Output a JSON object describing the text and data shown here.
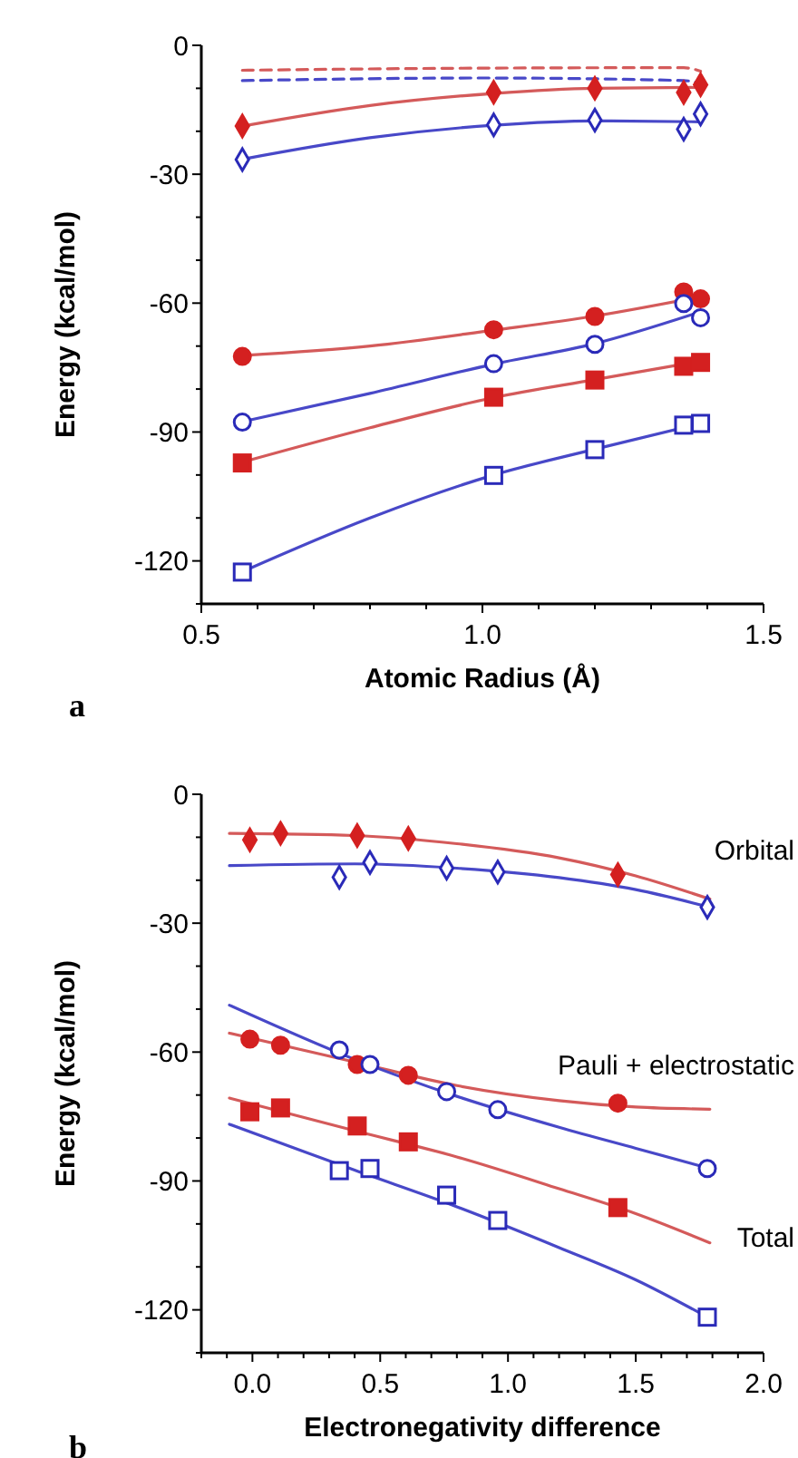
{
  "chart_data": [
    {
      "type": "scatter",
      "xlabel": "Atomic Radius (Å)",
      "ylabel": "Energy (kcal/mol)",
      "annotations": [
        "a"
      ],
      "xlim": [
        0.5,
        1.5
      ],
      "ylim": [
        -130,
        0
      ],
      "xticks": [
        {
          "value": 0.5,
          "label": "0.5"
        },
        {
          "value": 0.6,
          "label": null
        },
        {
          "value": 0.7,
          "label": null
        },
        {
          "value": 0.8,
          "label": null
        },
        {
          "value": 0.9,
          "label": null
        },
        {
          "value": 1.0,
          "label": "1.0"
        },
        {
          "value": 1.1,
          "label": null
        },
        {
          "value": 1.2,
          "label": null
        },
        {
          "value": 1.3,
          "label": null
        },
        {
          "value": 1.4,
          "label": null
        },
        {
          "value": 1.5,
          "label": "1.5"
        }
      ],
      "yticks": [
        {
          "value": -130,
          "label": null
        },
        -120,
        {
          "value": -110,
          "label": null
        },
        {
          "value": -100,
          "label": null
        },
        -90,
        {
          "value": -80,
          "label": null
        },
        {
          "value": -70,
          "label": null
        },
        -60,
        {
          "value": -50,
          "label": null
        },
        {
          "value": -40,
          "label": null
        },
        -30,
        {
          "value": -20,
          "label": null
        },
        {
          "value": -10,
          "label": null
        },
        0
      ],
      "grid": false,
      "series": [
        {
          "type": "line",
          "color": "#d45a5a",
          "line_style": "dashed",
          "marker": "none",
          "x": [
            0.573,
            1.0,
            1.358,
            1.388
          ],
          "values": [
            -5.8,
            -5.3,
            -5.2,
            -6
          ]
        },
        {
          "type": "line",
          "color": "#4848c8",
          "line_style": "dashed",
          "marker": "none",
          "x": [
            0.573,
            1.0,
            1.358,
            1.388
          ],
          "values": [
            -8.2,
            -7.6,
            -8.2,
            -8.8
          ]
        },
        {
          "type": "line",
          "color": "#d45a5a",
          "line_style": "solid",
          "marker": "none",
          "x": [
            0.573,
            0.8,
            1.02,
            1.2,
            1.388
          ],
          "values": [
            -18.8,
            -14,
            -11.2,
            -10,
            -9.8
          ]
        },
        {
          "type": "line",
          "color": "#4848c8",
          "line_style": "solid",
          "marker": "none",
          "x": [
            0.573,
            0.8,
            1.02,
            1.2,
            1.388
          ],
          "values": [
            -26.5,
            -21.5,
            -18.6,
            -17.6,
            -17.8
          ]
        },
        {
          "type": "line",
          "color": "#d45a5a",
          "line_style": "solid",
          "marker": "none",
          "x": [
            0.573,
            0.8,
            1.02,
            1.2,
            1.388
          ],
          "values": [
            -72.2,
            -70,
            -66.3,
            -63,
            -58.5
          ]
        },
        {
          "type": "line",
          "color": "#4848c8",
          "line_style": "solid",
          "marker": "none",
          "x": [
            0.573,
            0.8,
            1.02,
            1.2,
            1.388
          ],
          "values": [
            -87.6,
            -81,
            -74.2,
            -69.4,
            -62
          ]
        },
        {
          "type": "line",
          "color": "#d45a5a",
          "line_style": "solid",
          "marker": "none",
          "x": [
            0.573,
            0.8,
            1.02,
            1.2,
            1.388
          ],
          "values": [
            -97,
            -89,
            -82,
            -77.8,
            -73.5
          ]
        },
        {
          "type": "line",
          "color": "#4848c8",
          "line_style": "solid",
          "marker": "none",
          "x": [
            0.573,
            0.8,
            1.02,
            1.2,
            1.388
          ],
          "values": [
            -122.5,
            -110,
            -100,
            -94,
            -88
          ]
        },
        {
          "type": "scatter",
          "color": "#d42020",
          "marker": "diamond",
          "x": [
            0.573,
            1.02,
            1.2,
            1.358,
            1.388
          ],
          "values": [
            -18.8,
            -10.9,
            -10,
            -11,
            -9.2
          ]
        },
        {
          "type": "scatter",
          "color": "#2a2ab8",
          "marker": "diamond",
          "x": [
            0.573,
            1.02,
            1.2,
            1.358,
            1.388
          ],
          "values": [
            -26.6,
            -18.5,
            -17.4,
            -19.5,
            -16
          ]
        },
        {
          "type": "scatter",
          "color": "#d42020",
          "marker": "circle",
          "x": [
            0.573,
            1.02,
            1.2,
            1.358,
            1.388
          ],
          "values": [
            -72.4,
            -66.2,
            -63.1,
            -57.4,
            -59
          ]
        },
        {
          "type": "scatter",
          "color": "#2a2ab8",
          "marker": "circle",
          "x": [
            0.573,
            1.02,
            1.2,
            1.358,
            1.388
          ],
          "values": [
            -87.7,
            -74.1,
            -69.6,
            -60.1,
            -63.4
          ]
        },
        {
          "type": "scatter",
          "color": "#d42020",
          "marker": "square",
          "x": [
            0.573,
            1.02,
            1.2,
            1.358,
            1.388
          ],
          "values": [
            -97.2,
            -81.9,
            -77.9,
            -74.7,
            -73.8
          ]
        },
        {
          "type": "scatter",
          "color": "#2a2ab8",
          "marker": "square",
          "x": [
            0.573,
            1.02,
            1.2,
            1.358,
            1.388
          ],
          "values": [
            -122.6,
            -100.1,
            -94.1,
            -88.4,
            -88
          ]
        }
      ]
    },
    {
      "type": "scatter",
      "xlabel": "Electronegativity difference",
      "ylabel": "Energy (kcal/mol)",
      "xlim": [
        -0.2,
        2.0
      ],
      "ylim": [
        -130,
        0
      ],
      "annotations": [
        "b",
        "Orbital",
        "Pauli + electrostatic",
        "Total"
      ],
      "xticks": [
        {
          "value": -0.2,
          "label": null
        },
        {
          "value": -0.1,
          "label": null
        },
        {
          "value": 0,
          "label": "0.0"
        },
        {
          "value": 0.1,
          "label": null
        },
        {
          "value": 0.2,
          "label": null
        },
        {
          "value": 0.3,
          "label": null
        },
        {
          "value": 0.4,
          "label": null
        },
        {
          "value": 0.5,
          "label": "0.5"
        },
        {
          "value": 0.6,
          "label": null
        },
        {
          "value": 0.7,
          "label": null
        },
        {
          "value": 0.8,
          "label": null
        },
        {
          "value": 0.9,
          "label": null
        },
        {
          "value": 1.0,
          "label": "1.0"
        },
        {
          "value": 1.1,
          "label": null
        },
        {
          "value": 1.2,
          "label": null
        },
        {
          "value": 1.3,
          "label": null
        },
        {
          "value": 1.4,
          "label": null
        },
        {
          "value": 1.5,
          "label": "1.5"
        },
        {
          "value": 1.6,
          "label": null
        },
        {
          "value": 1.7,
          "label": null
        },
        {
          "value": 1.8,
          "label": null
        },
        {
          "value": 1.9,
          "label": null
        },
        {
          "value": 2.0,
          "label": "2.0"
        }
      ],
      "yticks": [
        {
          "value": -130,
          "label": null
        },
        -120,
        {
          "value": -110,
          "label": null
        },
        {
          "value": -100,
          "label": null
        },
        -90,
        {
          "value": -80,
          "label": null
        },
        {
          "value": -70,
          "label": null
        },
        -60,
        {
          "value": -50,
          "label": null
        },
        {
          "value": -40,
          "label": null
        },
        -30,
        {
          "value": -20,
          "label": null
        },
        {
          "value": -10,
          "label": null
        },
        0
      ],
      "grid": false,
      "series": [
        {
          "type": "line",
          "color": "#d45a5a",
          "line_style": "solid",
          "marker": "none",
          "x": [
            -0.09,
            0.4,
            0.8,
            1.2,
            1.5,
            1.79
          ],
          "values": [
            -9.1,
            -9.6,
            -11.5,
            -14.8,
            -19,
            -24.4
          ]
        },
        {
          "type": "line",
          "color": "#4848c8",
          "line_style": "solid",
          "marker": "none",
          "x": [
            -0.09,
            0.4,
            0.8,
            1.2,
            1.5,
            1.79
          ],
          "values": [
            -16.6,
            -16.2,
            -17.2,
            -19.4,
            -22.2,
            -26.3
          ]
        },
        {
          "type": "line",
          "color": "#d45a5a",
          "line_style": "solid",
          "marker": "none",
          "x": [
            -0.09,
            0.4,
            0.8,
            1.2,
            1.5,
            1.79
          ],
          "values": [
            -55.6,
            -62.3,
            -67.8,
            -71.3,
            -72.8,
            -73.3
          ]
        },
        {
          "type": "line",
          "color": "#4848c8",
          "line_style": "solid",
          "marker": "none",
          "x": [
            -0.09,
            0.4,
            0.8,
            1.2,
            1.5,
            1.79
          ],
          "values": [
            -49.1,
            -61.7,
            -70.3,
            -77.5,
            -82.4,
            -87.1
          ]
        },
        {
          "type": "line",
          "color": "#d45a5a",
          "line_style": "solid",
          "marker": "none",
          "x": [
            -0.09,
            0.4,
            0.8,
            1.2,
            1.5,
            1.79
          ],
          "values": [
            -70.7,
            -78.3,
            -84.4,
            -91.8,
            -97.6,
            -104.4
          ]
        },
        {
          "type": "line",
          "color": "#4848c8",
          "line_style": "solid",
          "marker": "none",
          "x": [
            -0.09,
            0.4,
            0.8,
            1.2,
            1.5,
            1.79
          ],
          "values": [
            -76.8,
            -87.5,
            -96,
            -105.5,
            -113,
            -122
          ]
        },
        {
          "type": "scatter",
          "color": "#d42020",
          "marker": "diamond",
          "x": [
            -0.01,
            0.11,
            0.41,
            0.61,
            1.43
          ],
          "values": [
            -10.6,
            -9.1,
            -9.6,
            -10.3,
            -18.7
          ]
        },
        {
          "type": "scatter",
          "color": "#2a2ab8",
          "marker": "diamond",
          "x": [
            0.34,
            0.46,
            0.76,
            0.96,
            1.78
          ],
          "values": [
            -19.3,
            -15.9,
            -17.2,
            -18.1,
            -26.3
          ]
        },
        {
          "type": "scatter",
          "color": "#d42020",
          "marker": "circle",
          "x": [
            -0.01,
            0.11,
            0.41,
            0.61,
            1.43
          ],
          "values": [
            -57,
            -58.4,
            -62.9,
            -65.4,
            -71.9
          ]
        },
        {
          "type": "scatter",
          "color": "#2a2ab8",
          "marker": "circle",
          "x": [
            0.34,
            0.46,
            0.76,
            0.96,
            1.78
          ],
          "values": [
            -59.5,
            -62.9,
            -69.2,
            -73.4,
            -87.1
          ]
        },
        {
          "type": "scatter",
          "color": "#d42020",
          "marker": "square",
          "x": [
            -0.01,
            0.11,
            0.41,
            0.61,
            1.43
          ],
          "values": [
            -73.9,
            -73,
            -77.2,
            -80.9,
            -96.2
          ]
        },
        {
          "type": "scatter",
          "color": "#2a2ab8",
          "marker": "square",
          "x": [
            0.34,
            0.46,
            0.76,
            0.96,
            1.78
          ],
          "values": [
            -87.6,
            -87.1,
            -93.3,
            -99.2,
            -121.7
          ]
        }
      ]
    }
  ]
}
